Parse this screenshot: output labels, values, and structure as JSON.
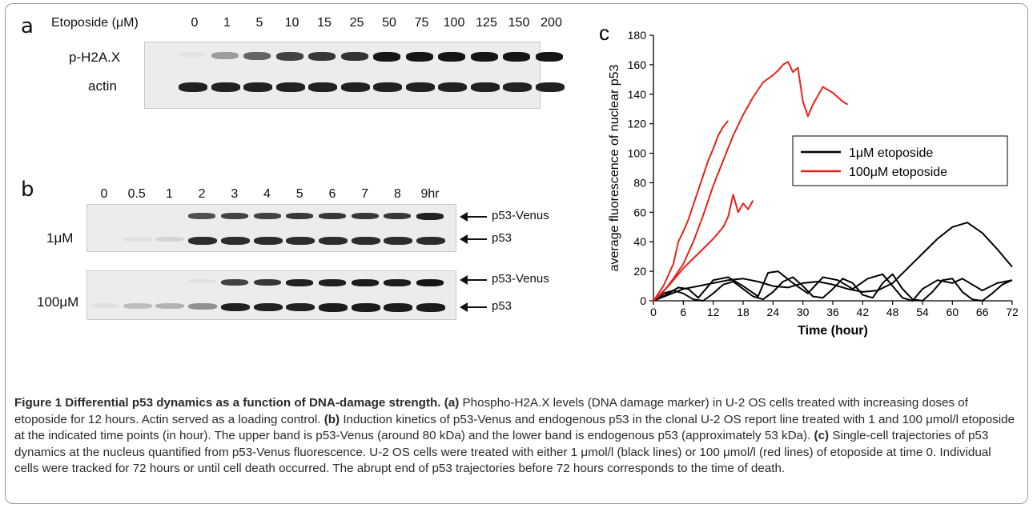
{
  "panel_a": {
    "label": "a",
    "treatment_label": "Etoposide (μM)",
    "doses": [
      "0",
      "1",
      "5",
      "10",
      "15",
      "25",
      "50",
      "75",
      "100",
      "125",
      "150",
      "200"
    ],
    "rows": [
      "p-H2A.X",
      "actin"
    ],
    "phx_intensity": [
      0.03,
      0.35,
      0.6,
      0.75,
      0.8,
      0.82,
      0.95,
      0.95,
      0.95,
      0.95,
      0.95,
      0.95
    ],
    "actin_intensity": [
      0.9,
      0.9,
      0.9,
      0.9,
      0.9,
      0.9,
      0.9,
      0.9,
      0.9,
      0.9,
      0.9,
      0.9
    ]
  },
  "panel_b": {
    "label": "b",
    "timepoints": [
      "0",
      "0.5",
      "1",
      "2",
      "3",
      "4",
      "5",
      "6",
      "7",
      "8",
      "9hr"
    ],
    "groups": [
      {
        "name": "1μM",
        "venus": [
          0,
          0,
          0,
          0.7,
          0.75,
          0.75,
          0.8,
          0.8,
          0.8,
          0.8,
          0.9
        ],
        "p53": [
          0,
          0.05,
          0.1,
          0.85,
          0.85,
          0.85,
          0.85,
          0.85,
          0.85,
          0.85,
          0.85
        ]
      },
      {
        "name": "100μM",
        "venus": [
          0,
          0,
          0,
          0.05,
          0.75,
          0.8,
          0.9,
          0.9,
          0.92,
          0.92,
          0.95
        ],
        "p53": [
          0.05,
          0.2,
          0.25,
          0.4,
          0.9,
          0.9,
          0.9,
          0.92,
          0.92,
          0.92,
          0.92
        ]
      }
    ],
    "arrow_labels": [
      "p53-Venus",
      "p53",
      "p53-Venus",
      "p53"
    ]
  },
  "chart_data": {
    "type": "line",
    "panel_label": "c",
    "xlabel": "Time (hour)",
    "ylabel": "average fluorescence of nuclear p53",
    "xlim": [
      0,
      72
    ],
    "ylim": [
      0,
      180
    ],
    "xticks": [
      0,
      6,
      12,
      18,
      24,
      30,
      36,
      42,
      48,
      54,
      60,
      66,
      72
    ],
    "yticks": [
      0,
      20,
      40,
      60,
      80,
      100,
      120,
      140,
      160,
      180
    ],
    "legend": {
      "position": "center-right",
      "entries": [
        {
          "name": "1μM etoposide",
          "color": "#000000"
        },
        {
          "name": "100μM etoposide",
          "color": "#e8221b"
        }
      ]
    },
    "series": [
      {
        "name": "1μM etoposide",
        "color": "#000000",
        "x": [
          0,
          3,
          6,
          9,
          12,
          15,
          18,
          21,
          24,
          27,
          30,
          33,
          36,
          39,
          42,
          45,
          48,
          51,
          54,
          57,
          60,
          63,
          66,
          69,
          72
        ],
        "y": [
          0,
          4,
          8,
          10,
          12,
          14,
          15,
          13,
          10,
          9,
          12,
          13,
          11,
          8,
          6,
          7,
          12,
          22,
          32,
          42,
          50,
          53,
          46,
          35,
          23
        ]
      },
      {
        "name": "1μM etoposide",
        "color": "#000000",
        "x": [
          0,
          3,
          5,
          7,
          9,
          12,
          15,
          18,
          21,
          23,
          25,
          28,
          31,
          34,
          37,
          40,
          43,
          46,
          48,
          50,
          52,
          54,
          57,
          60,
          62,
          64,
          66,
          69,
          72
        ],
        "y": [
          0,
          5,
          9,
          8,
          2,
          14,
          16,
          10,
          3,
          19,
          20,
          12,
          5,
          16,
          14,
          8,
          15,
          18,
          10,
          2,
          0,
          8,
          14,
          12,
          15,
          11,
          7,
          12,
          14
        ]
      },
      {
        "name": "1μM etoposide",
        "color": "#000000",
        "x": [
          0,
          2,
          4,
          6,
          8,
          10,
          12,
          14,
          16,
          18,
          20,
          22,
          24,
          26,
          28,
          30,
          32,
          34,
          36,
          38,
          40,
          42,
          44,
          46,
          48,
          50,
          52,
          54,
          56,
          58,
          60,
          62,
          64,
          66,
          68,
          70,
          72
        ],
        "y": [
          0,
          5,
          7,
          5,
          1,
          0,
          5,
          11,
          13,
          8,
          3,
          1,
          6,
          13,
          16,
          10,
          3,
          2,
          8,
          15,
          12,
          4,
          2,
          12,
          18,
          8,
          1,
          0,
          6,
          14,
          15,
          6,
          1,
          0,
          5,
          11,
          14
        ]
      },
      {
        "name": "100μM etoposide",
        "color": "#e8221b",
        "x": [
          0,
          2,
          4,
          5,
          6,
          7,
          8,
          9,
          10,
          11,
          12,
          13,
          14,
          15
        ],
        "y": [
          0,
          10,
          25,
          40,
          47,
          55,
          65,
          75,
          85,
          95,
          103,
          112,
          118,
          122
        ]
      },
      {
        "name": "100μM etoposide",
        "color": "#e8221b",
        "x": [
          0,
          2,
          4,
          6,
          8,
          10,
          12,
          14,
          16,
          18,
          20,
          22,
          24,
          25,
          26,
          27,
          28,
          29,
          30,
          31,
          32,
          34,
          36,
          38,
          39
        ],
        "y": [
          0,
          6,
          15,
          25,
          40,
          58,
          78,
          95,
          112,
          126,
          138,
          148,
          153,
          156,
          160,
          162,
          155,
          158,
          135,
          125,
          133,
          145,
          141,
          135,
          133
        ]
      },
      {
        "name": "100μM etoposide",
        "color": "#e8221b",
        "x": [
          0,
          3,
          6,
          9,
          12,
          14,
          15,
          16,
          17,
          18,
          19,
          20
        ],
        "y": [
          0,
          10,
          22,
          32,
          42,
          50,
          57,
          72,
          60,
          66,
          62,
          68
        ]
      }
    ]
  },
  "caption": {
    "title": "Figure 1 Differential p53 dynamics as a function of DNA-damage strength.",
    "a_label": "(a)",
    "a_text": "Phospho-H2A.X levels (DNA damage marker) in U-2 OS cells treated with increasing doses of etoposide for 12 hours. Actin served as a loading control.",
    "b_label": "(b)",
    "b_text": "Induction kinetics of p53-Venus and endogenous p53 in the clonal U-2 OS report line treated with 1 and 100 μmol/l etoposide at the indicated time points (in hour). The upper band is p53-Venus (around 80 kDa) and the lower band is endogenous p53 (approximately 53 kDa).",
    "c_label": "(c)",
    "c_text": "Single-cell trajectories of p53 dynamics at the nucleus quantified from p53-Venus fluorescence. U-2 OS cells were treated with either 1 μmol/l (black lines) or 100 μmol/l (red lines) of etoposide at time 0. Individual cells were tracked for 72 hours or until cell death occurred. The abrupt end of p53 trajectories before 72 hours corresponds to the time of death."
  }
}
